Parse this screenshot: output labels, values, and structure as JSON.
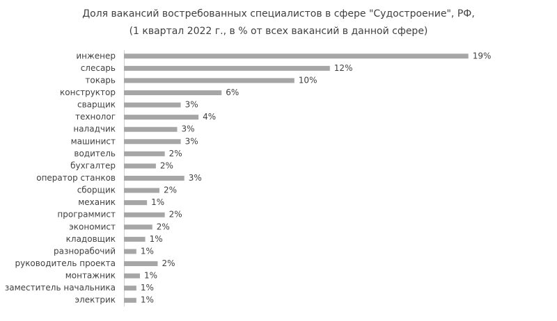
{
  "chart_data": {
    "type": "bar",
    "orientation": "horizontal",
    "title": [
      "Доля вакансий востребованных специалистов в сфере \"Судостроение\", РФ,",
      "(1 квартал 2022 г., в % от всех вакансий в данной сфере)"
    ],
    "categories": [
      "инженер",
      "слесарь",
      "токарь",
      "конструктор",
      "сварщик",
      "технолог",
      "наладчик",
      "машинист",
      "водитель",
      "бухгалтер",
      "оператор станков",
      "сборщик",
      "механик",
      "программист",
      "экономист",
      "кладовщик",
      "разнорабочий",
      "руководитель проекта",
      "монтажник",
      "заместитель начальника",
      "электрик"
    ],
    "values": [
      19.4,
      11.6,
      9.6,
      5.5,
      3.2,
      4.2,
      3.0,
      3.2,
      2.3,
      1.8,
      3.4,
      2.0,
      1.3,
      2.3,
      1.6,
      1.2,
      0.7,
      1.9,
      0.9,
      0.7,
      0.7
    ],
    "value_labels": [
      "19%",
      "12%",
      "10%",
      "6%",
      "3%",
      "4%",
      "3%",
      "3%",
      "2%",
      "2%",
      "3%",
      "2%",
      "1%",
      "2%",
      "2%",
      "1%",
      "1%",
      "2%",
      "1%",
      "1%",
      "1%"
    ],
    "color": "#a6a6a6",
    "xlim": [
      0,
      20
    ]
  }
}
